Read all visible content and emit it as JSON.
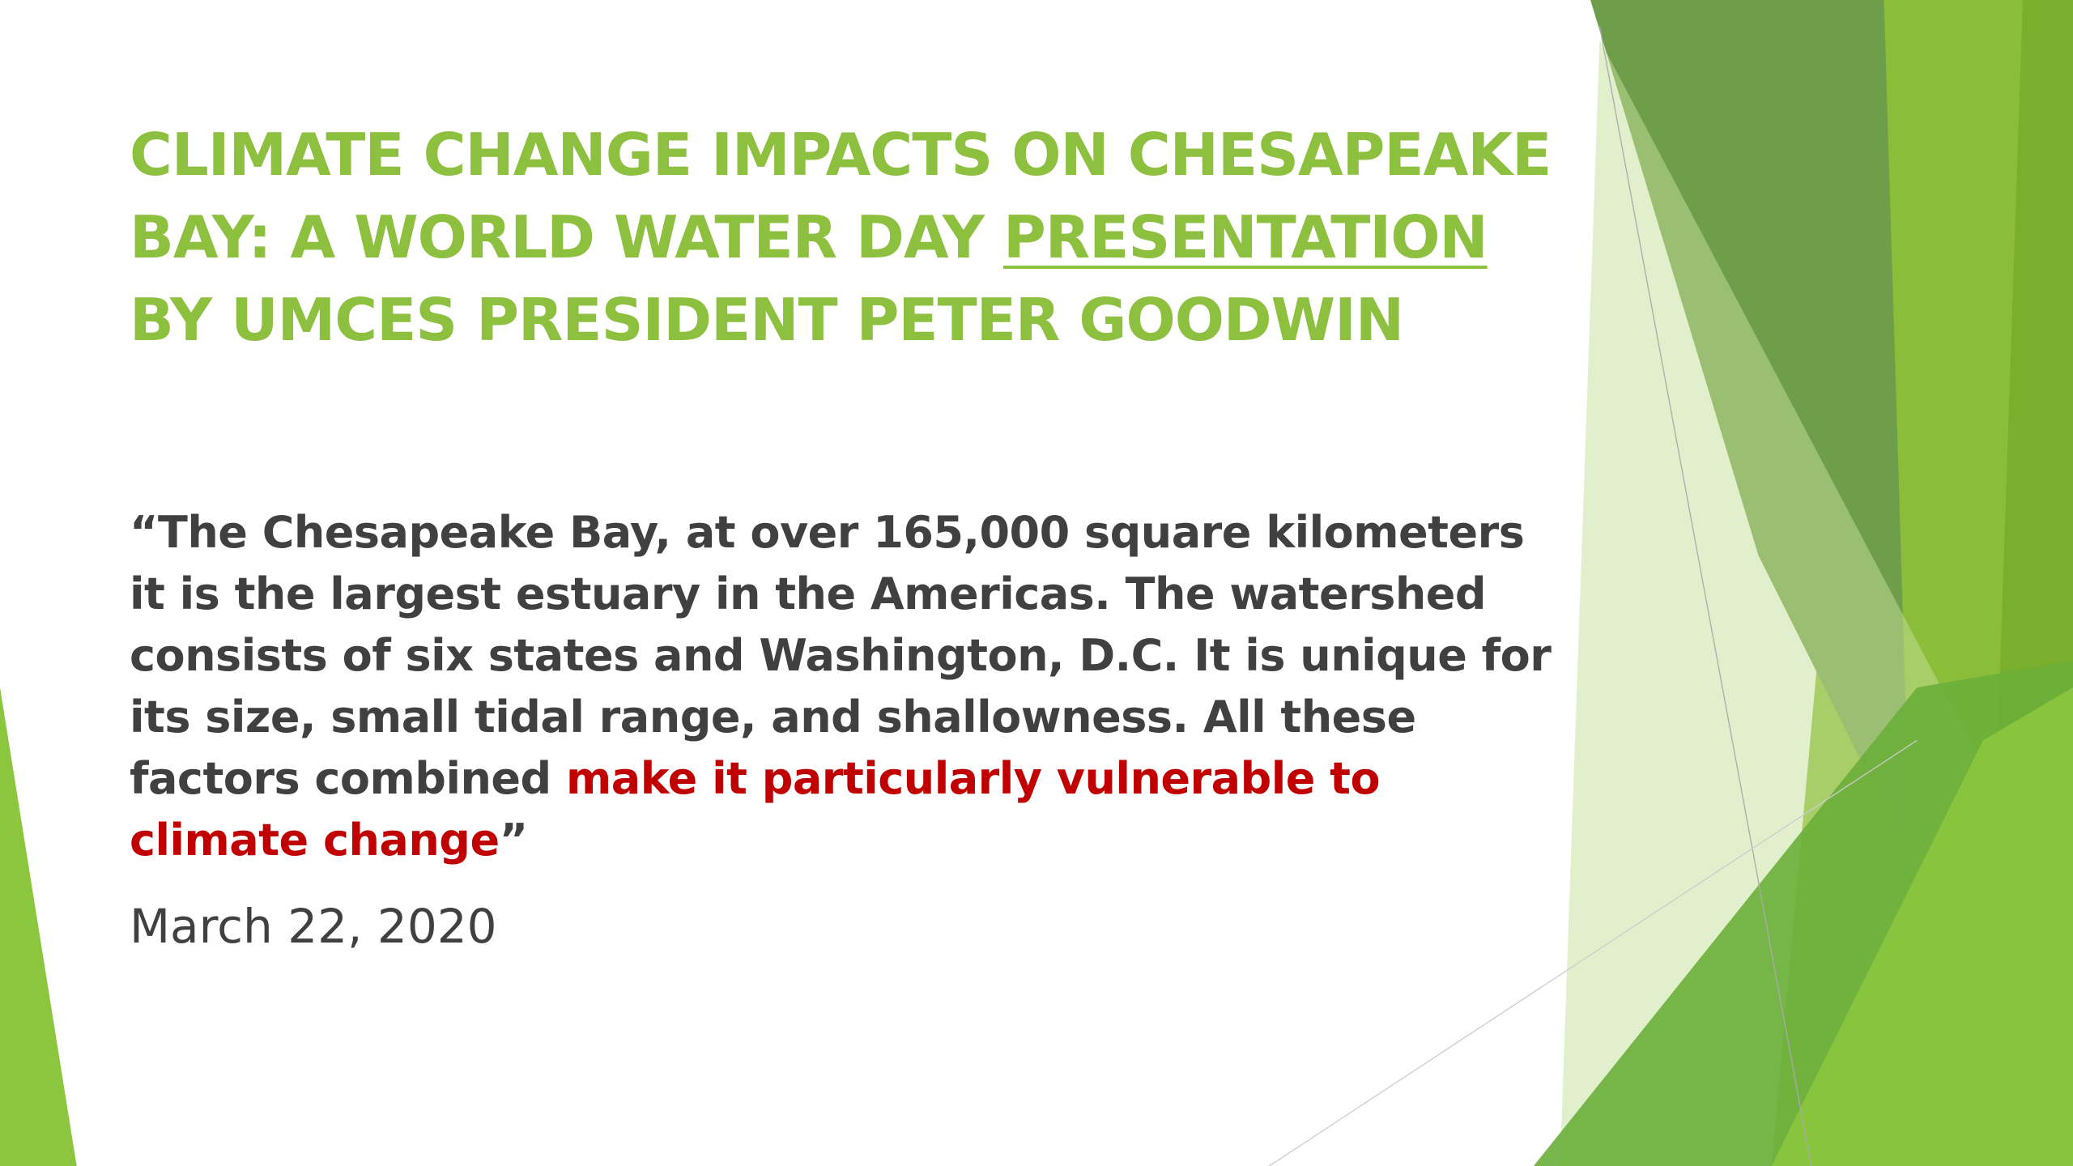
{
  "title": {
    "before": "CLIMATE CHANGE IMPACTS ON CHESAPEAKE BAY: A WORLD WATER DAY ",
    "link": "PRESENTATION",
    "after": " BY UMCES PRESIDENT PETER GOODWIN"
  },
  "quote": {
    "text": "“The Chesapeake Bay, at over 165,000 square kilometers it is the largest estuary in the Americas. The watershed consists of six states and Washington, D.C. It is unique for its size, small tidal range, and shallowness. All these factors combined ",
    "highlight": "make it particularly vulnerable to climate change",
    "close": "”"
  },
  "date": "March 22, 2020"
}
